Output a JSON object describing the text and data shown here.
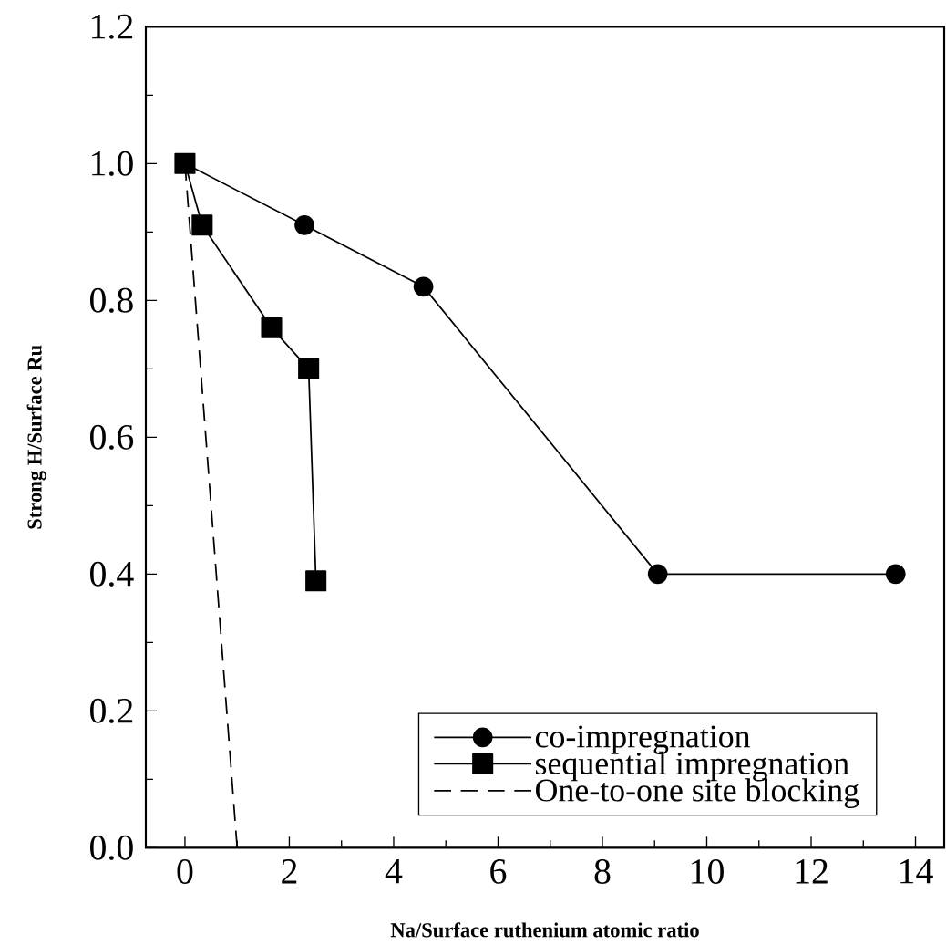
{
  "chart_data": {
    "type": "line",
    "xlabel": "Na/Surface ruthenium atomic ratio",
    "ylabel": "Strong H/Surface Ru",
    "xlim": [
      -0.75,
      14.55
    ],
    "ylim": [
      0,
      1.2
    ],
    "xticks": [
      0,
      2,
      4,
      6,
      8,
      10,
      12,
      14
    ],
    "yticks": [
      {
        "value": 0,
        "label": "0.0"
      },
      0.2,
      0.4,
      0.6,
      0.8,
      {
        "value": 1,
        "label": "1.0"
      },
      1.2
    ],
    "legend": "bottom right",
    "grid": false,
    "line_style": "solid",
    "series": [
      {
        "name": "co-impregnation",
        "color": "#000000",
        "marker": "circle",
        "x": [
          0,
          2.29,
          4.57,
          9.06,
          13.62
        ],
        "values": [
          1.0,
          0.91,
          0.82,
          0.4,
          0.4
        ]
      },
      {
        "name": "sequential impregnation",
        "color": "#000000",
        "marker": "square",
        "x": [
          0,
          0.33,
          1.66,
          2.37,
          2.51
        ],
        "values": [
          1.0,
          0.91,
          0.76,
          0.7,
          0.39
        ]
      },
      {
        "name": "One-to-one site blocking",
        "color": "#000000",
        "marker": "none",
        "line_style": "dashed",
        "x": [
          0,
          1
        ],
        "values": [
          1.0,
          0
        ]
      }
    ]
  }
}
